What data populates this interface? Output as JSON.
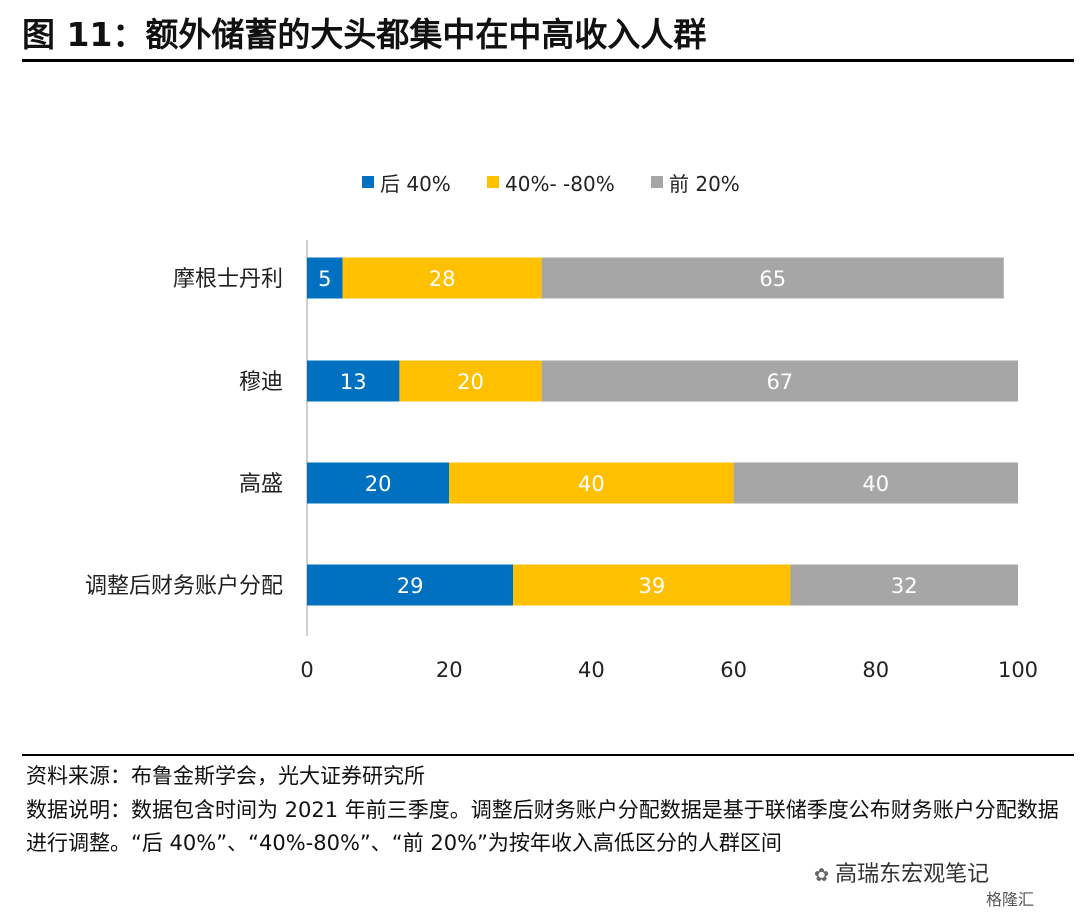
{
  "header": {
    "title": "图 11：额外储蓄的大头都集中在中高收入人群"
  },
  "chart_data": {
    "type": "bar",
    "orientation": "horizontal",
    "stacked": true,
    "categories": [
      "摩根士丹利",
      "穆迪",
      "高盛",
      "调整后财务账户分配"
    ],
    "series": [
      {
        "name": "后 40%",
        "color": "#0070C0",
        "values": [
          5,
          13,
          20,
          29
        ]
      },
      {
        "name": "40%- -80%",
        "color": "#FFC000",
        "values": [
          28,
          20,
          40,
          39
        ]
      },
      {
        "name": "前 20%",
        "color": "#A6A6A6",
        "values": [
          65,
          67,
          40,
          32
        ]
      }
    ],
    "xlim": [
      0,
      100
    ],
    "xticks": [
      "0",
      "20",
      "40",
      "60",
      "80",
      "100"
    ],
    "legend_position": "top",
    "data_labels": true,
    "grid": false
  },
  "footer": {
    "source": "资料来源：布鲁金斯学会，光大证券研究所",
    "description": "数据说明：数据包含时间为 2021 年前三季度。调整后财务账户分配数据是基于联储季度公布财务账户分配数据进行调整。“后 40%”、“40%-80%”、“前 20%”为按年收入高低区分的人群区间",
    "watermark": "高瑞东宏观笔记",
    "corner_logo": "格隆汇"
  }
}
